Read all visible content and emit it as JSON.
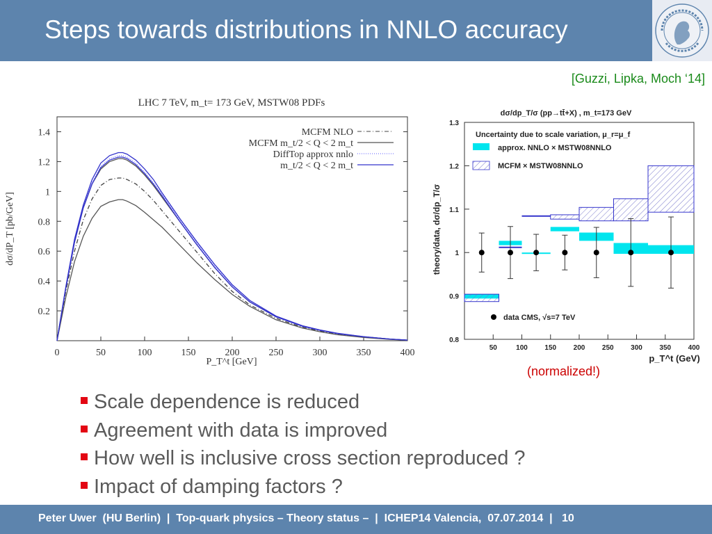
{
  "slide": {
    "title": "Steps towards distributions in NNLO accuracy",
    "citation": "[Guzzi, Lipka, Moch ‘14]",
    "normalized_note": "(normalized!)",
    "bullets": [
      "Scale dependence is reduced",
      "Agreement with data is improved",
      "How well is inclusive cross section reproduced ?",
      "Impact of damping factors ?"
    ],
    "footer": "Peter Uwer  (HU Berlin)  |  Top-quark physics – Theory status –  |  ICHEP14 Valencia,  07.07.2014  |   10",
    "logo_text": "HUMBOLDT-UNIVERSITÄT ZU BERLIN"
  },
  "colors": {
    "header": "#5d84ad",
    "bullet": "#e30613",
    "citation": "#1a8a1a",
    "note": "#cc0000"
  },
  "chart_data": [
    {
      "type": "line",
      "title": "LHC 7 TeV, m_t= 173 GeV, MSTW08 PDFs",
      "xlabel": "P_T^t [GeV]",
      "ylabel": "dσ/dP_T [pb/GeV]",
      "xlim": [
        0,
        400
      ],
      "ylim": [
        0,
        1.5
      ],
      "xticks": [
        0,
        50,
        100,
        150,
        200,
        250,
        300,
        350,
        400
      ],
      "yticks": [
        0.2,
        0.4,
        0.6,
        0.8,
        1,
        1.2,
        1.4
      ],
      "x": [
        0,
        10,
        20,
        30,
        40,
        50,
        60,
        70,
        75,
        80,
        90,
        100,
        110,
        120,
        140,
        160,
        180,
        200,
        220,
        250,
        280,
        300,
        320,
        350,
        380,
        400
      ],
      "legend_placement": "top-right",
      "series": [
        {
          "name": "MCFM NLO",
          "style": "dashdot",
          "color": "#444444",
          "values": [
            0,
            0.33,
            0.6,
            0.81,
            0.95,
            1.04,
            1.08,
            1.09,
            1.09,
            1.08,
            1.05,
            1.0,
            0.94,
            0.87,
            0.73,
            0.59,
            0.45,
            0.33,
            0.24,
            0.15,
            0.09,
            0.065,
            0.045,
            0.025,
            0.01,
            0.004
          ]
        },
        {
          "name": "MCFM m_t/2 < Q < 2 m_t",
          "style": "solid",
          "color": "#555555",
          "values": [
            0,
            0.29,
            0.53,
            0.7,
            0.82,
            0.9,
            0.93,
            0.945,
            0.945,
            0.935,
            0.905,
            0.86,
            0.81,
            0.76,
            0.64,
            0.52,
            0.41,
            0.31,
            0.23,
            0.14,
            0.085,
            0.06,
            0.04,
            0.022,
            0.009,
            0.003
          ]
        },
        {
          "name": "",
          "style": "solid",
          "color": "#555555",
          "values": [
            0,
            0.35,
            0.66,
            0.89,
            1.05,
            1.15,
            1.2,
            1.22,
            1.22,
            1.21,
            1.17,
            1.11,
            1.04,
            0.96,
            0.8,
            0.64,
            0.49,
            0.36,
            0.26,
            0.16,
            0.1,
            0.07,
            0.048,
            0.026,
            0.011,
            0.004
          ]
        },
        {
          "name": "DiffTop approx nnlo",
          "style": "dotted",
          "color": "#7b7bff",
          "values": [
            0,
            0.36,
            0.67,
            0.9,
            1.06,
            1.17,
            1.22,
            1.24,
            1.24,
            1.23,
            1.19,
            1.13,
            1.06,
            0.98,
            0.81,
            0.65,
            0.5,
            0.37,
            0.27,
            0.165,
            0.1,
            0.072,
            0.05,
            0.027,
            0.011,
            0.004
          ]
        },
        {
          "name": "m_t/2 < Q < 2 m_t",
          "style": "solid",
          "color": "#3333cc",
          "values": [
            0,
            0.36,
            0.68,
            0.91,
            1.08,
            1.19,
            1.24,
            1.26,
            1.26,
            1.25,
            1.21,
            1.15,
            1.08,
            0.99,
            0.82,
            0.66,
            0.51,
            0.375,
            0.27,
            0.165,
            0.1,
            0.072,
            0.05,
            0.027,
            0.011,
            0.004
          ]
        },
        {
          "name": "",
          "style": "solid",
          "color": "#3333cc",
          "values": [
            0,
            0.35,
            0.66,
            0.89,
            1.05,
            1.16,
            1.21,
            1.23,
            1.23,
            1.22,
            1.18,
            1.12,
            1.05,
            0.97,
            0.8,
            0.64,
            0.49,
            0.36,
            0.26,
            0.16,
            0.097,
            0.07,
            0.048,
            0.026,
            0.011,
            0.004
          ]
        }
      ]
    },
    {
      "type": "bar",
      "title": "dσ/dp_T/σ (pp→tt̄+X) , m_t=173 GeV",
      "subtitle": "Uncertainty due to scale variation, μ_r=μ_f",
      "xlabel": "p_T^t (GeV)",
      "ylabel": "theory/data, dσ/dp_T/σ",
      "xlim": [
        0,
        400
      ],
      "ylim": [
        0.8,
        1.3
      ],
      "xticks": [
        50,
        100,
        150,
        200,
        250,
        300,
        350,
        400
      ],
      "yticks": [
        0.8,
        0.9,
        1,
        1.1,
        1.2,
        1.3
      ],
      "bins": [
        [
          0,
          60
        ],
        [
          60,
          100
        ],
        [
          100,
          150
        ],
        [
          150,
          200
        ],
        [
          200,
          260
        ],
        [
          260,
          320
        ],
        [
          320,
          400
        ]
      ],
      "series": [
        {
          "name": "approx. NNLO × MSTW08NNLO",
          "color": "#00e5ee",
          "low": [
            0.894,
            1.017,
            1.0,
            1.049,
            1.027,
            0.997,
            0.997
          ],
          "high": [
            0.904,
            1.027,
            1.0,
            1.059,
            1.046,
            1.022,
            1.017
          ]
        },
        {
          "name": "MCFM × MSTW08NNLO",
          "color": "#3333cc",
          "low": [
            0.887,
            1.012,
            1.084,
            1.077,
            1.073,
            1.073,
            1.093
          ],
          "high": [
            0.904,
            1.012,
            1.084,
            1.087,
            1.104,
            1.124,
            1.2
          ]
        },
        {
          "name": "data CMS, √s=7 TeV",
          "color": "#000000",
          "x": [
            30,
            80,
            125,
            175,
            230,
            290,
            360
          ],
          "values": [
            1,
            1,
            1,
            1,
            1,
            1,
            1
          ],
          "err_low": [
            0.955,
            0.94,
            0.958,
            0.96,
            0.942,
            0.922,
            0.918
          ],
          "err_high": [
            1.045,
            1.06,
            1.042,
            1.04,
            1.058,
            1.078,
            1.082
          ]
        }
      ]
    }
  ]
}
